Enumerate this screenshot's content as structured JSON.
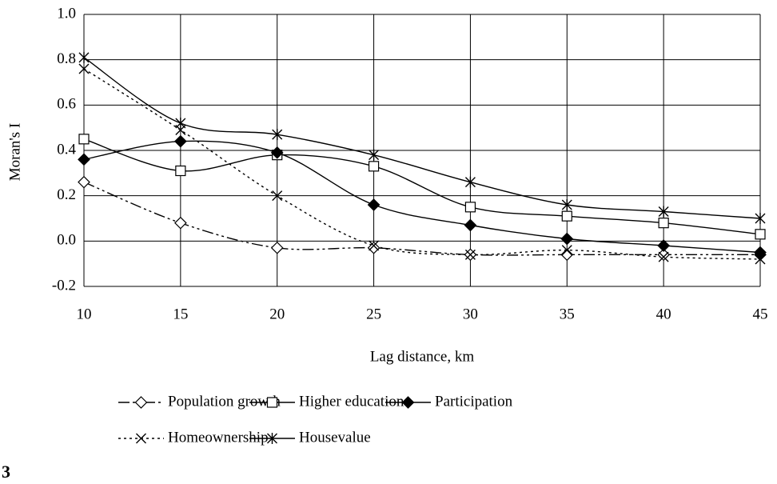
{
  "chart_data": {
    "type": "line",
    "y_label": "Moran's I",
    "x_label": "Lag distance, km",
    "panel_label": "3",
    "x": [
      10,
      15,
      20,
      25,
      30,
      35,
      40,
      45
    ],
    "xlim": [
      10,
      45
    ],
    "xticks": [
      10,
      15,
      20,
      25,
      30,
      35,
      40,
      45
    ],
    "ylim": [
      -0.2,
      1.0
    ],
    "yticks": [
      -0.2,
      {
        "value": 0,
        "label": "0.0"
      },
      0.2,
      0.4,
      0.6,
      0.8,
      {
        "value": 1,
        "label": "1.0"
      }
    ],
    "grid": true,
    "series": [
      {
        "name": "Population growth",
        "color": "#000000",
        "dash": "dashdot",
        "marker": "diamond-open",
        "values": [
          0.26,
          0.08,
          -0.03,
          -0.03,
          -0.06,
          -0.06,
          -0.06,
          -0.06
        ]
      },
      {
        "name": "Higher education",
        "color": "#000000",
        "dash": "solid",
        "marker": "square-open",
        "values": [
          0.45,
          0.31,
          0.38,
          0.33,
          0.15,
          0.11,
          0.08,
          0.03
        ]
      },
      {
        "name": "Participation",
        "color": "#000000",
        "dash": "solid",
        "marker": "diamond-filled",
        "values": [
          0.36,
          0.44,
          0.39,
          0.16,
          0.07,
          0.01,
          -0.02,
          -0.05
        ]
      },
      {
        "name": "Homeownership",
        "color": "#000000",
        "dash": "dotted",
        "marker": "x",
        "values": [
          0.76,
          0.49,
          0.2,
          -0.02,
          -0.06,
          -0.04,
          -0.07,
          -0.08
        ]
      },
      {
        "name": "Housevalue",
        "color": "#000000",
        "dash": "solid",
        "marker": "asterisk",
        "values": [
          0.81,
          0.52,
          0.47,
          0.38,
          0.26,
          0.16,
          0.13,
          0.1
        ]
      }
    ]
  }
}
